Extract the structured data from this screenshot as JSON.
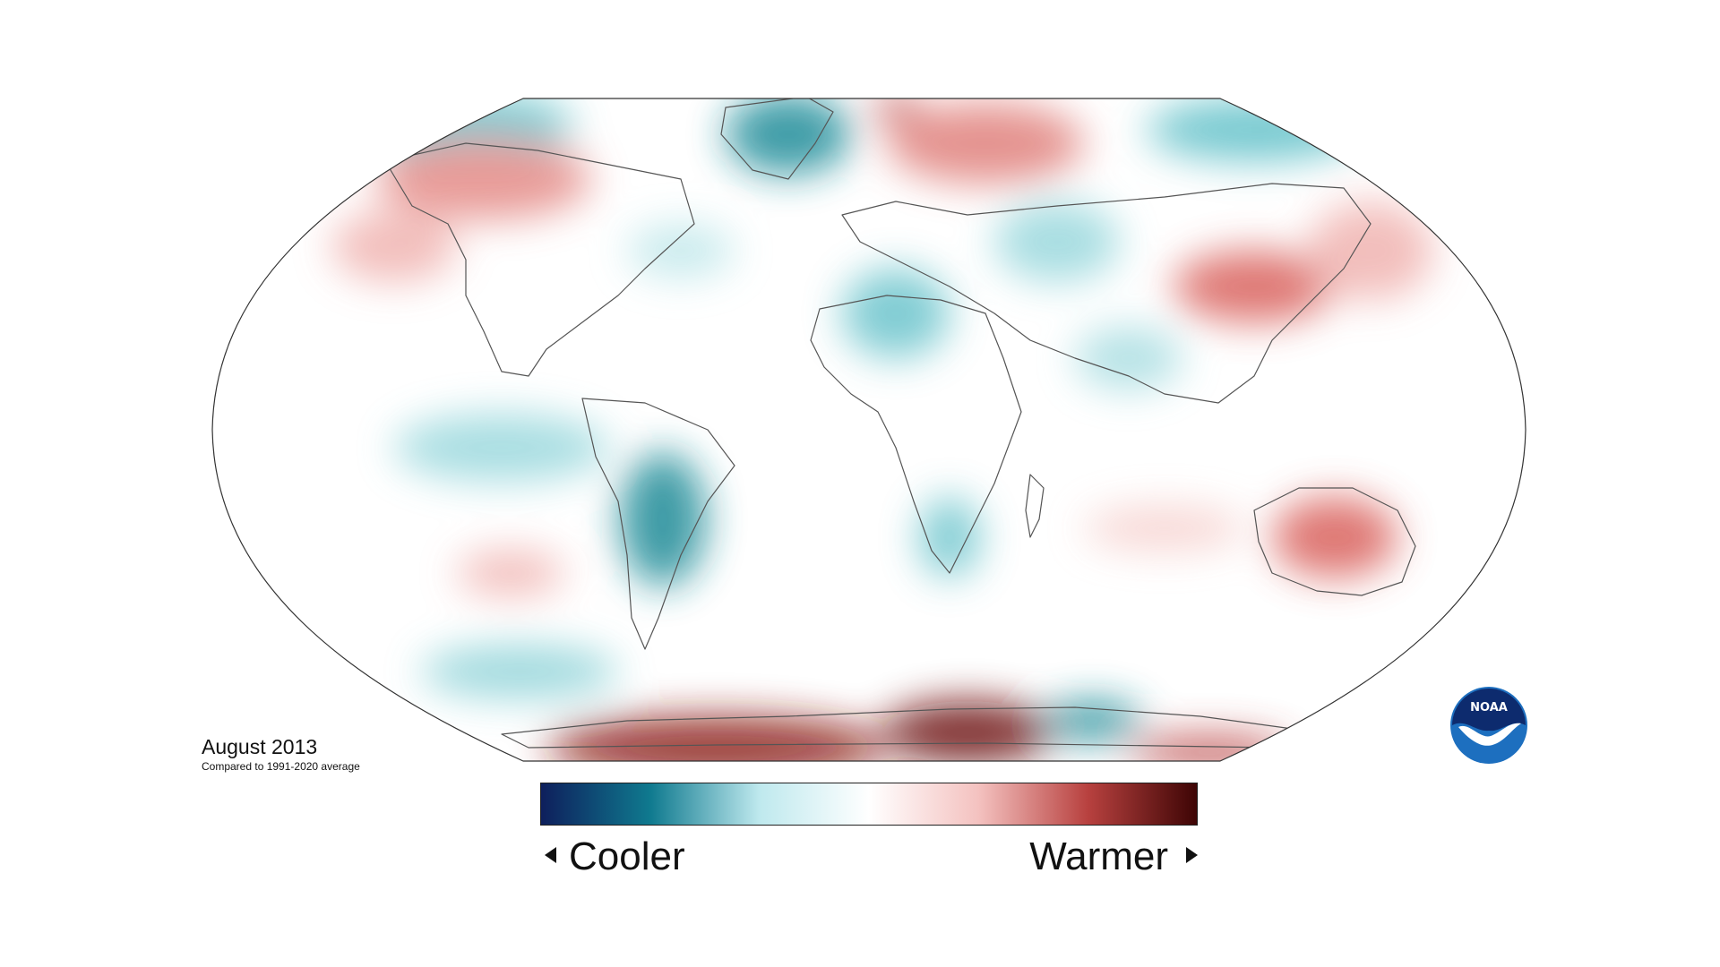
{
  "caption": {
    "title": "August 2013",
    "subtitle": "Compared to 1991-2020 average"
  },
  "legend": {
    "cooler_label": "Cooler",
    "warmer_label": "Warmer",
    "gradient_stops": [
      "#0e1f5c",
      "#0f7a8f",
      "#bfe9ee",
      "#ffffff",
      "#f4c2c0",
      "#b8413f",
      "#3e0505"
    ]
  },
  "logo": {
    "text": "NOAA",
    "colors": {
      "outer": "#1d6fbf",
      "inner": "#0d2b6e",
      "bird": "#ffffff"
    }
  },
  "map": {
    "colors": {
      "cool": "#2aa0ad",
      "cool_deep": "#0e7d8c",
      "warm": "#d9534f",
      "warm_deep": "#8a1a17",
      "outline": "#555555",
      "base": "#ffffff"
    }
  }
}
